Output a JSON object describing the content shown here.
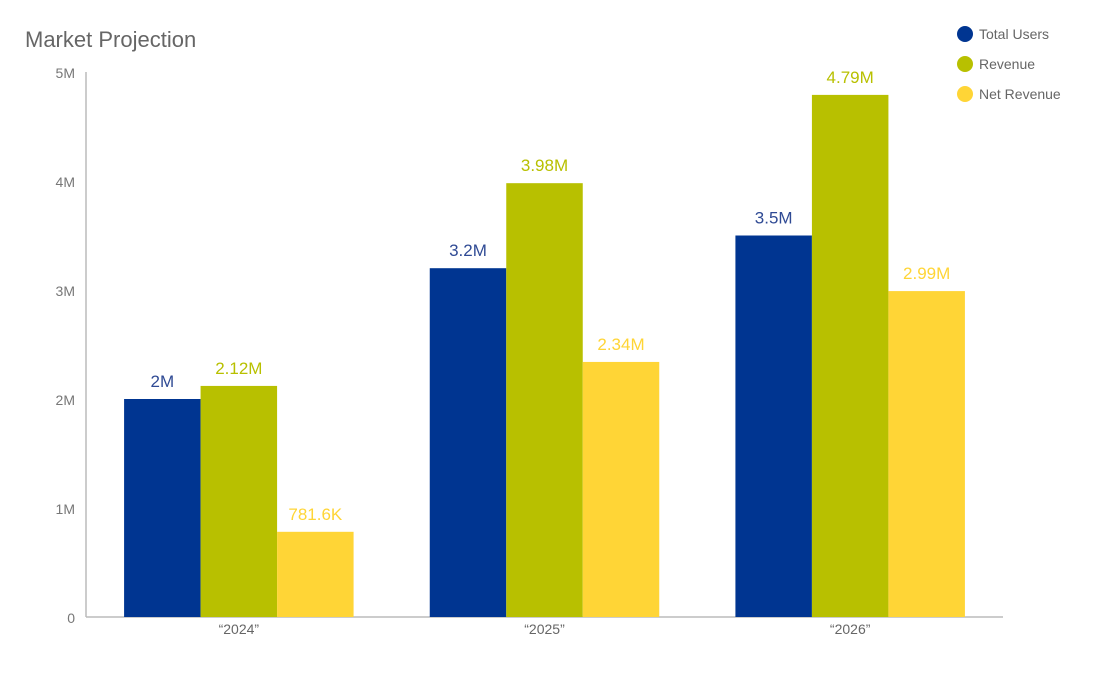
{
  "chart_data": {
    "type": "bar",
    "title": "Market Projection",
    "xlabel": "",
    "ylabel": "",
    "categories": [
      "“2024”",
      "“2025”",
      "“2026”"
    ],
    "ylim": [
      0,
      5000000
    ],
    "yticks": [
      0,
      1000000,
      2000000,
      3000000,
      4000000,
      5000000
    ],
    "ytick_labels": [
      "0",
      "1M",
      "2M",
      "3M",
      "4M",
      "5M"
    ],
    "grid": false,
    "legend_position": "top-right",
    "series": [
      {
        "name": "Total Users",
        "color": "#003591",
        "label_color": "#2f4a94",
        "values": [
          2000000,
          3200000,
          3500000
        ],
        "labels": [
          "2M",
          "3.2M",
          "3.5M"
        ]
      },
      {
        "name": "Revenue",
        "color": "#b8c000",
        "label_color": "#b8c000",
        "values": [
          2120000,
          3980000,
          4790000
        ],
        "labels": [
          "2.12M",
          "3.98M",
          "4.79M"
        ]
      },
      {
        "name": "Net Revenue",
        "color": "#ffd536",
        "label_color": "#ffd536",
        "values": [
          781600,
          2340000,
          2990000
        ],
        "labels": [
          "781.6K",
          "2.34M",
          "2.99M"
        ]
      }
    ]
  }
}
